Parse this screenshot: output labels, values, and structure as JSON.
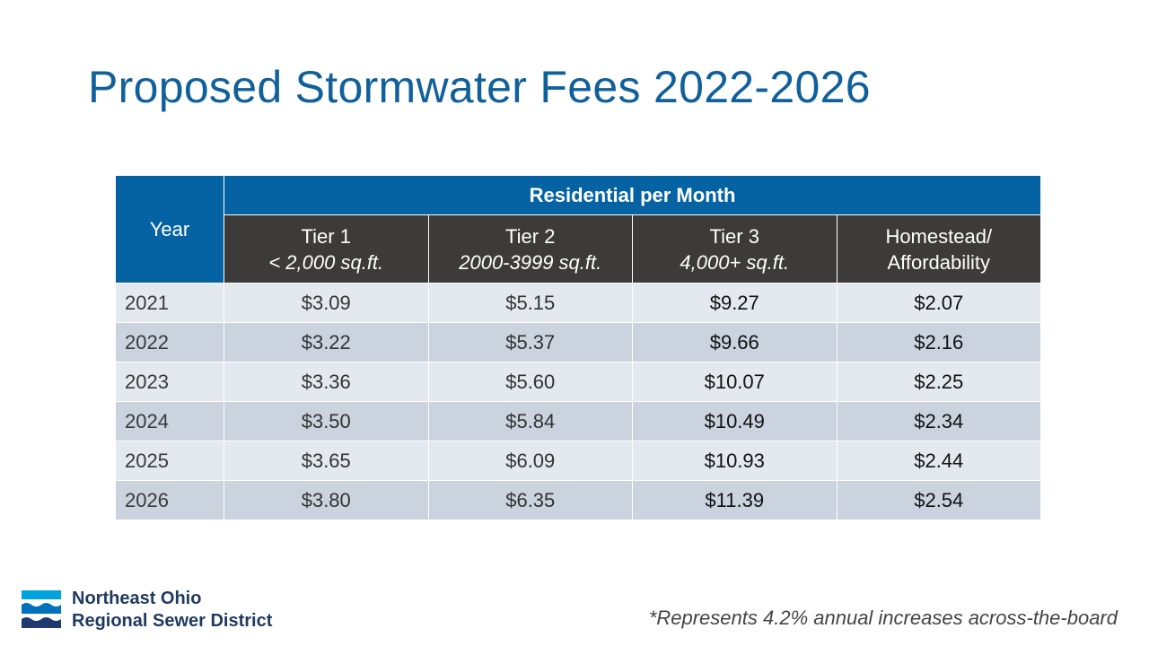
{
  "title": "Proposed Stormwater Fees 2022-2026",
  "table": {
    "year_header": "Year",
    "group_header": "Residential per Month",
    "columns": [
      {
        "name": "Tier 1",
        "sub": "< 2,000 sq.ft."
      },
      {
        "name": "Tier 2",
        "sub": "2000-3999 sq.ft."
      },
      {
        "name": "Tier 3",
        "sub": "4,000+ sq.ft."
      },
      {
        "name": "Homestead/",
        "sub": "Affordability"
      }
    ],
    "rows": [
      {
        "year": "2021",
        "tier1": "$3.09",
        "tier2": "$5.15",
        "tier3": "$9.27",
        "homestead": "$2.07"
      },
      {
        "year": "2022",
        "tier1": "$3.22",
        "tier2": "$5.37",
        "tier3": "$9.66",
        "homestead": "$2.16"
      },
      {
        "year": "2023",
        "tier1": "$3.36",
        "tier2": "$5.60",
        "tier3": "$10.07",
        "homestead": "$2.25"
      },
      {
        "year": "2024",
        "tier1": "$3.50",
        "tier2": "$5.84",
        "tier3": "$10.49",
        "homestead": "$2.34"
      },
      {
        "year": "2025",
        "tier1": "$3.65",
        "tier2": "$6.09",
        "tier3": "$10.93",
        "homestead": "$2.44"
      },
      {
        "year": "2026",
        "tier1": "$3.80",
        "tier2": "$6.35",
        "tier3": "$11.39",
        "homestead": "$2.54"
      }
    ]
  },
  "footer": {
    "org_line1": "Northeast Ohio",
    "org_line2": "Regional Sewer District",
    "note": "*Represents 4.2% annual increases across-the-board",
    "logo_icon": "wave-logo-icon"
  },
  "colors": {
    "title": "#0f609b",
    "header_blue": "#0563a3",
    "header_dark": "#3d3b3a",
    "row_light": "#e4e8ef",
    "row_dark": "#cbd3df"
  }
}
